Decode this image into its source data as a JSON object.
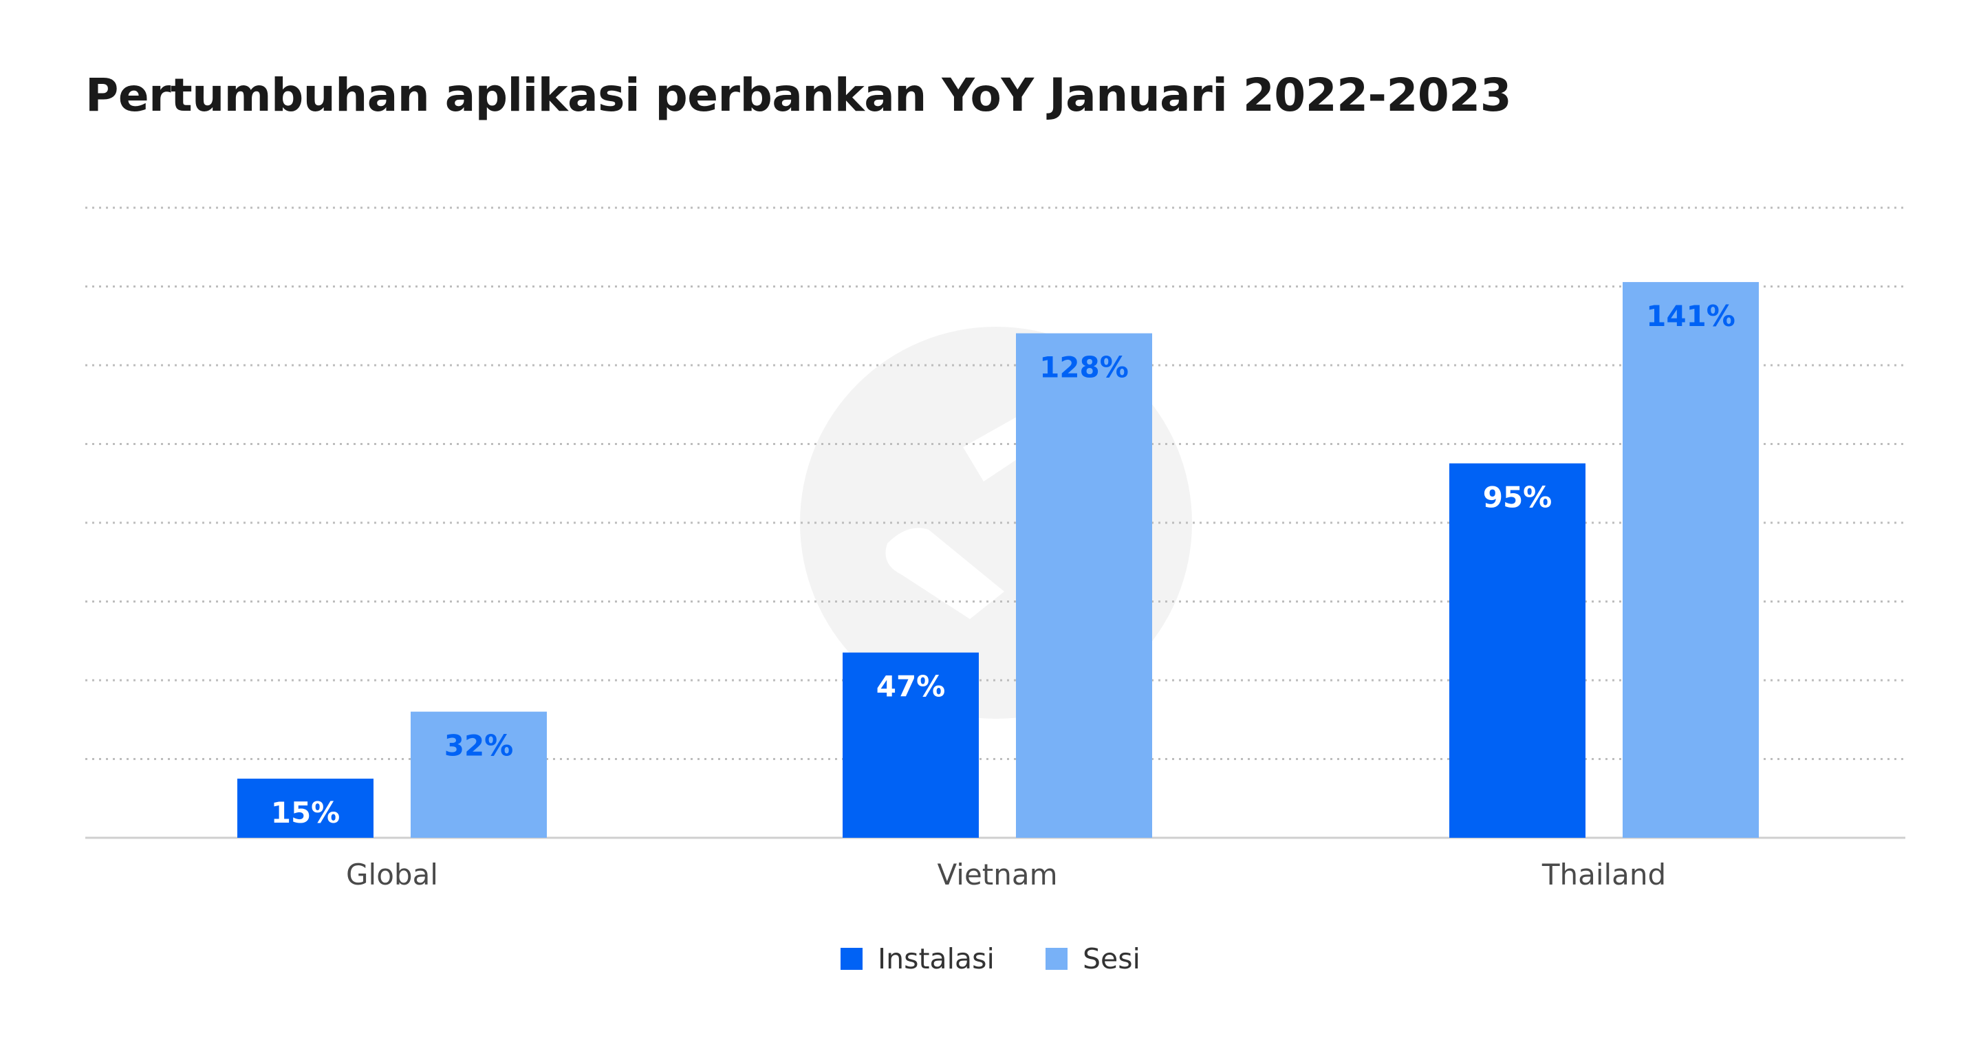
{
  "chart_data": {
    "type": "bar",
    "title": "Pertumbuhan aplikasi perbankan YoY Januari 2022-2023",
    "categories": [
      "Global",
      "Vietnam",
      "Thailand"
    ],
    "series": [
      {
        "name": "Instalasi",
        "values": [
          15,
          47,
          95
        ],
        "labels": [
          "15%",
          "47%",
          "95%"
        ],
        "color": "#0062F5",
        "label_color": "#FFFFFF"
      },
      {
        "name": "Sesi",
        "values": [
          32,
          128,
          141
        ],
        "labels": [
          "32%",
          "128%",
          "141%"
        ],
        "color": "#78B1F7",
        "label_color": "#0062F5"
      }
    ],
    "ylim": [
      0,
      160
    ],
    "grid": true,
    "grid_style": "dotted",
    "legend_position": "bottom-center",
    "xlabel": "",
    "ylabel": ""
  },
  "watermark": {
    "icon": "app-logo-watermark-icon",
    "color": "#F3F3F3"
  }
}
